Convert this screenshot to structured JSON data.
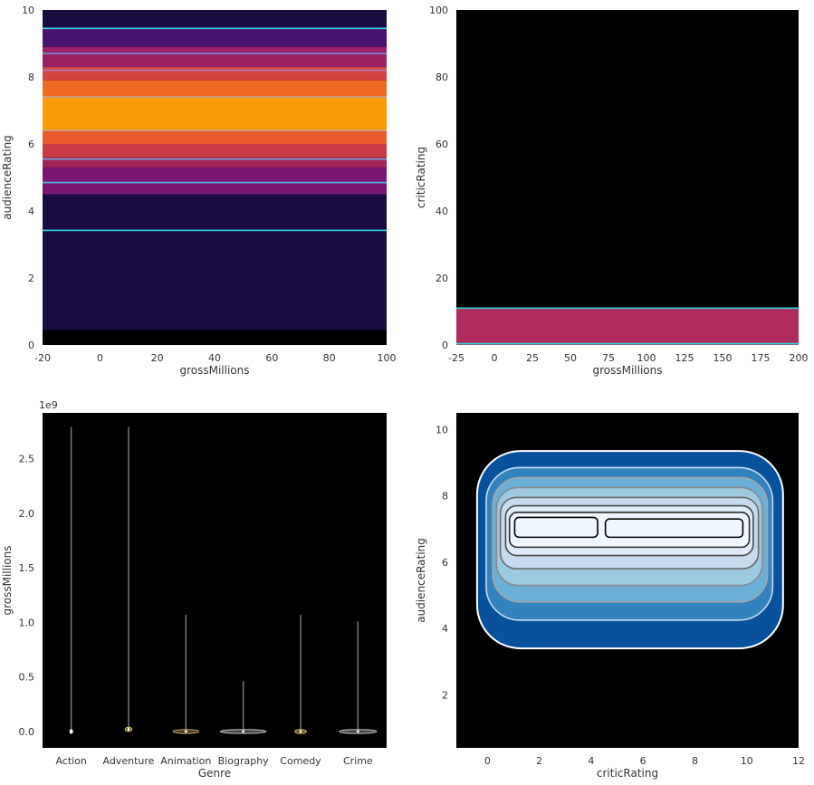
{
  "chart_data": [
    {
      "type": "heatmap",
      "xlabel": "grossMillions",
      "ylabel": "audienceRating",
      "xlim": [
        -20,
        100
      ],
      "ylim": [
        0,
        10
      ],
      "xticks": [
        -20,
        0,
        20,
        40,
        60,
        80,
        100
      ],
      "yticks": [
        0,
        2,
        4,
        6,
        8,
        10
      ],
      "bands": [
        {
          "y0": 0.0,
          "y1": 0.45,
          "color": "#000000"
        },
        {
          "y0": 0.45,
          "y1": 4.5,
          "color": "#1a0c40"
        },
        {
          "y0": 4.5,
          "y1": 5.3,
          "color": "#7b1772"
        },
        {
          "y0": 5.3,
          "y1": 5.6,
          "color": "#a2245a"
        },
        {
          "y0": 5.6,
          "y1": 6.0,
          "color": "#cc3a44"
        },
        {
          "y0": 6.0,
          "y1": 6.4,
          "color": "#ea5a2c"
        },
        {
          "y0": 6.4,
          "y1": 7.4,
          "color": "#fb9b06"
        },
        {
          "y0": 7.4,
          "y1": 7.9,
          "color": "#ef6a1f"
        },
        {
          "y0": 7.9,
          "y1": 8.3,
          "color": "#d34540"
        },
        {
          "y0": 8.3,
          "y1": 8.9,
          "color": "#9c2064"
        },
        {
          "y0": 8.9,
          "y1": 9.45,
          "color": "#4a1371"
        },
        {
          "y0": 9.45,
          "y1": 10.0,
          "color": "#1a0c40"
        }
      ],
      "contour_levels": [
        {
          "y": 9.45,
          "color": "#33d6e0"
        },
        {
          "y": 8.7,
          "color": "#6f8fd0"
        },
        {
          "y": 8.2,
          "color": "#b07ab8"
        },
        {
          "y": 7.4,
          "color": "#c8a09a"
        },
        {
          "y": 6.4,
          "color": "#c8a09a"
        },
        {
          "y": 5.55,
          "color": "#7e9ed8"
        },
        {
          "y": 4.85,
          "color": "#4fb8e8"
        },
        {
          "y": 3.42,
          "color": "#33d6e0"
        }
      ]
    },
    {
      "type": "heatmap",
      "xlabel": "grossMillions",
      "ylabel": "criticRating",
      "xlim": [
        -25,
        200
      ],
      "ylim": [
        0,
        100
      ],
      "xticks": [
        -25,
        0,
        25,
        50,
        75,
        100,
        125,
        150,
        175,
        200
      ],
      "yticks": [
        0,
        20,
        40,
        60,
        80,
        100
      ],
      "bands": [
        {
          "y0": 0,
          "y1": 11,
          "color": "#b02c5f"
        },
        {
          "y0": 11,
          "y1": 100,
          "color": "#000000"
        }
      ],
      "contour_levels": [
        {
          "y": 11,
          "color": "#33d6e0"
        },
        {
          "y": 0.4,
          "color": "#33d6e0"
        }
      ]
    },
    {
      "type": "violin",
      "xlabel": "Genre",
      "ylabel": "grossMillions",
      "offset_label": "1e9",
      "categories": [
        "Action",
        "Adventure",
        "Animation",
        "Biography",
        "Comedy",
        "Crime"
      ],
      "yticks": [
        0.0,
        0.5,
        1.0,
        1.5,
        2.0,
        2.5
      ],
      "ylim": [
        -0.15,
        2.92
      ],
      "series": [
        {
          "category": "Action",
          "max": 2.79,
          "median": 0.0,
          "width": 0.03,
          "color": "#ffffff"
        },
        {
          "category": "Adventure",
          "max": 2.79,
          "median": 0.02,
          "width": 0.12,
          "color": "#e8c36a"
        },
        {
          "category": "Animation",
          "max": 1.07,
          "median": 0.0,
          "width": 0.45,
          "color": "#c9a268"
        },
        {
          "category": "Biography",
          "max": 0.46,
          "median": 0.0,
          "width": 0.8,
          "color": "#c2c2c2"
        },
        {
          "category": "Comedy",
          "max": 1.07,
          "median": 0.0,
          "width": 0.2,
          "color": "#e8c36a"
        },
        {
          "category": "Crime",
          "max": 1.01,
          "median": 0.0,
          "width": 0.65,
          "color": "#c2c2c2"
        }
      ]
    },
    {
      "type": "contour",
      "xlabel": "criticRating",
      "ylabel": "audienceRating",
      "xlim": [
        -1.2,
        12
      ],
      "ylim": [
        0.4,
        10.5
      ],
      "xticks": [
        0,
        2,
        4,
        6,
        8,
        10,
        12
      ],
      "yticks": [
        2,
        4,
        6,
        8,
        10
      ],
      "filled_levels": [
        {
          "x0": -0.4,
          "x1": 11.4,
          "y0": 3.4,
          "y1": 9.35,
          "color": "#08519c"
        },
        {
          "x0": -0.05,
          "x1": 11.0,
          "y0": 4.25,
          "y1": 8.85,
          "color": "#3182bd"
        },
        {
          "x0": 0.2,
          "x1": 10.8,
          "y0": 4.8,
          "y1": 8.55,
          "color": "#6baed6"
        },
        {
          "x0": 0.35,
          "x1": 10.6,
          "y0": 5.3,
          "y1": 8.25,
          "color": "#9ecae1"
        },
        {
          "x0": 0.5,
          "x1": 10.45,
          "y0": 5.8,
          "y1": 7.95,
          "color": "#c6dbef"
        },
        {
          "x0": 0.7,
          "x1": 10.25,
          "y0": 6.2,
          "y1": 7.7,
          "color": "#deebf7"
        },
        {
          "x0": 0.85,
          "x1": 10.1,
          "y0": 6.45,
          "y1": 7.5,
          "color": "#eff6fd"
        }
      ],
      "line_levels": [
        {
          "x0": -0.4,
          "x1": 11.4,
          "y0": 3.4,
          "y1": 9.35,
          "color": "#ffffff"
        },
        {
          "x0": -0.05,
          "x1": 11.0,
          "y0": 4.25,
          "y1": 8.85,
          "color": "#c6dbef"
        },
        {
          "x0": 0.2,
          "x1": 10.8,
          "y0": 4.8,
          "y1": 8.55,
          "color": "#a6a6a6"
        },
        {
          "x0": 0.35,
          "x1": 10.6,
          "y0": 5.3,
          "y1": 8.25,
          "color": "#8a8a8a"
        },
        {
          "x0": 0.5,
          "x1": 10.45,
          "y0": 5.8,
          "y1": 7.95,
          "color": "#6a6a6a"
        },
        {
          "x0": 0.7,
          "x1": 10.25,
          "y0": 6.2,
          "y1": 7.7,
          "color": "#4a4a4a"
        },
        {
          "x0": 0.85,
          "x1": 10.1,
          "y0": 6.45,
          "y1": 7.5,
          "color": "#2a2a2a"
        },
        {
          "x0": 1.05,
          "x1": 4.25,
          "y0": 6.75,
          "y1": 7.35,
          "color": "#000000"
        },
        {
          "x0": 4.55,
          "x1": 9.85,
          "y0": 6.75,
          "y1": 7.3,
          "color": "#000000"
        }
      ]
    }
  ]
}
